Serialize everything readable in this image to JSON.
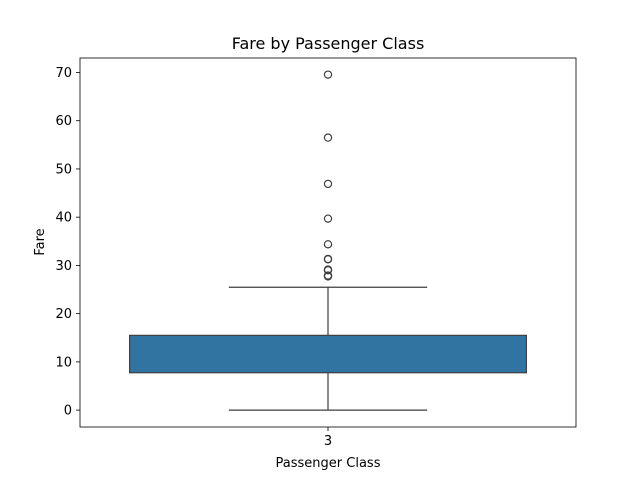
{
  "chart_data": {
    "type": "box",
    "title": "Fare by Passenger Class",
    "xlabel": "Passenger Class",
    "ylabel": "Fare",
    "categories": [
      "3"
    ],
    "ylim": [
      -3.5,
      73.0
    ],
    "yticks": [
      0,
      10,
      20,
      30,
      40,
      50,
      60,
      70
    ],
    "box": {
      "category": "3",
      "whisker_low": 0.0,
      "q1": 7.75,
      "q3": 15.5,
      "whisker_high": 25.47,
      "fill_color": "#3274a1"
    },
    "outliers": [
      27.72,
      27.9,
      29.0,
      29.125,
      31.275,
      31.33,
      34.375,
      39.69,
      46.9,
      56.5,
      69.55
    ],
    "grid": false,
    "legend": "none"
  }
}
